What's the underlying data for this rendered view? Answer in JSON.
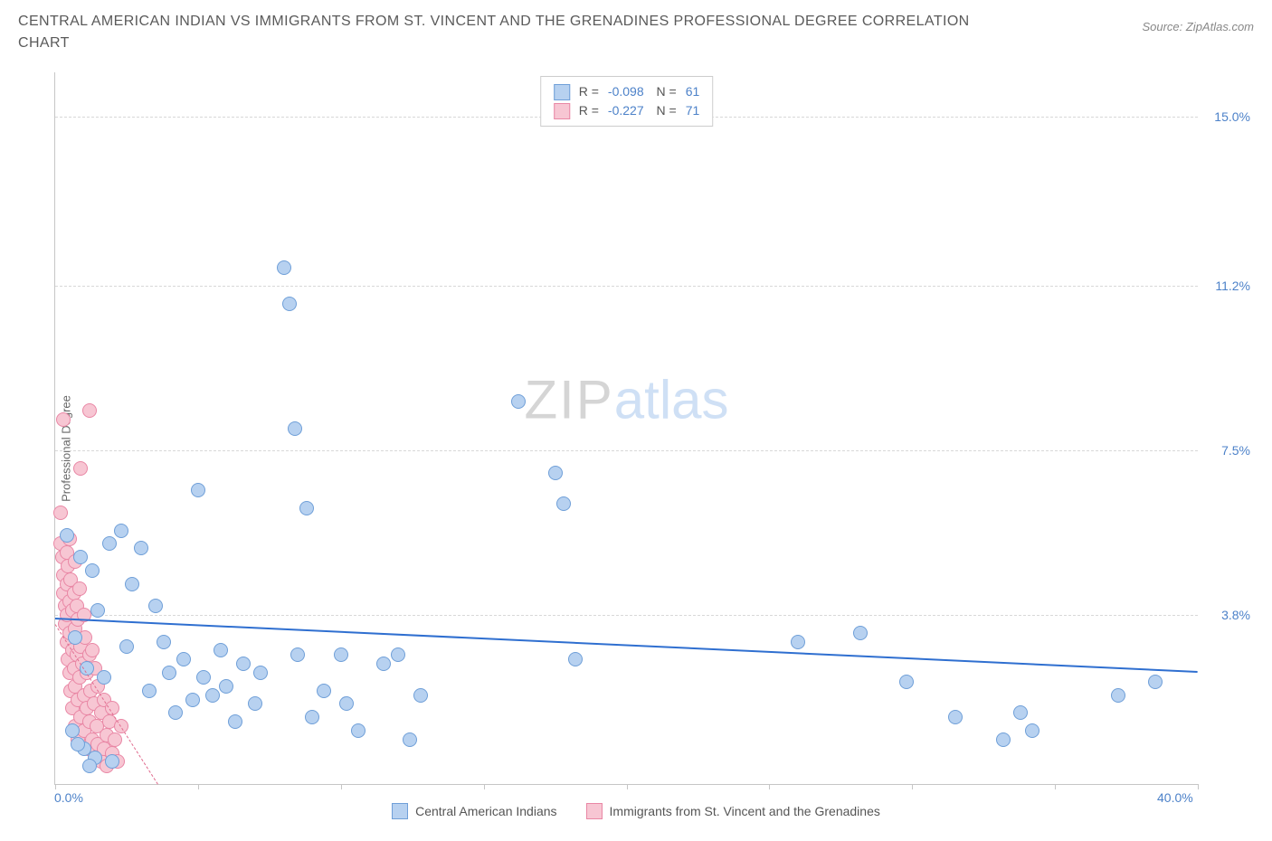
{
  "title": "CENTRAL AMERICAN INDIAN VS IMMIGRANTS FROM ST. VINCENT AND THE GRENADINES PROFESSIONAL DEGREE CORRELATION CHART",
  "source": "Source: ZipAtlas.com",
  "y_axis_label": "Professional Degree",
  "watermark": {
    "a": "ZIP",
    "b": "atlas"
  },
  "chart": {
    "type": "scatter",
    "background_color": "#ffffff",
    "grid_color": "#d8d8d8",
    "axis_color": "#c6c6c6",
    "xlim": [
      0,
      40
    ],
    "ylim": [
      0,
      16
    ],
    "x_ticks": [
      0,
      5,
      10,
      15,
      20,
      25,
      30,
      35,
      40
    ],
    "y_gridlines": [
      3.8,
      7.5,
      11.2,
      15.0
    ],
    "y_tick_labels": [
      "3.8%",
      "7.5%",
      "11.2%",
      "15.0%"
    ],
    "x_min_label": "0.0%",
    "x_max_label": "40.0%",
    "tick_label_color": "#4d82c9",
    "marker_radius": 8,
    "marker_border_width": 1,
    "series": [
      {
        "name": "Central American Indians",
        "fill": "#b7d1f0",
        "stroke": "#6f9fd8",
        "r": "-0.098",
        "n": "61",
        "trend": {
          "x1": 0,
          "y1": 3.75,
          "x2": 40,
          "y2": 2.55,
          "color": "#2f6fd0",
          "width": 2,
          "dash": false
        },
        "points": [
          [
            0.4,
            5.6
          ],
          [
            0.7,
            3.3
          ],
          [
            0.9,
            5.1
          ],
          [
            1.1,
            2.6
          ],
          [
            1.3,
            4.8
          ],
          [
            1.5,
            3.9
          ],
          [
            1.7,
            2.4
          ],
          [
            1.9,
            5.4
          ],
          [
            2.3,
            5.7
          ],
          [
            2.5,
            3.1
          ],
          [
            2.7,
            4.5
          ],
          [
            3.0,
            5.3
          ],
          [
            3.3,
            2.1
          ],
          [
            3.5,
            4.0
          ],
          [
            3.8,
            3.2
          ],
          [
            4.0,
            2.5
          ],
          [
            4.2,
            1.6
          ],
          [
            4.5,
            2.8
          ],
          [
            4.8,
            1.9
          ],
          [
            5.0,
            6.6
          ],
          [
            5.2,
            2.4
          ],
          [
            5.5,
            2.0
          ],
          [
            5.8,
            3.0
          ],
          [
            6.0,
            2.2
          ],
          [
            6.3,
            1.4
          ],
          [
            6.6,
            2.7
          ],
          [
            7.0,
            1.8
          ],
          [
            7.2,
            2.5
          ],
          [
            8.0,
            11.6
          ],
          [
            8.2,
            10.8
          ],
          [
            8.4,
            8.0
          ],
          [
            8.5,
            2.9
          ],
          [
            8.8,
            6.2
          ],
          [
            9.0,
            1.5
          ],
          [
            9.4,
            2.1
          ],
          [
            10.0,
            2.9
          ],
          [
            10.2,
            1.8
          ],
          [
            10.6,
            1.2
          ],
          [
            11.5,
            2.7
          ],
          [
            12.0,
            2.9
          ],
          [
            12.4,
            1.0
          ],
          [
            12.8,
            2.0
          ],
          [
            16.2,
            8.6
          ],
          [
            17.5,
            7.0
          ],
          [
            17.8,
            6.3
          ],
          [
            18.2,
            2.8
          ],
          [
            26.0,
            3.2
          ],
          [
            28.2,
            3.4
          ],
          [
            29.8,
            2.3
          ],
          [
            31.5,
            1.5
          ],
          [
            33.2,
            1.0
          ],
          [
            33.8,
            1.6
          ],
          [
            34.2,
            1.2
          ],
          [
            37.2,
            2.0
          ],
          [
            38.5,
            2.3
          ],
          [
            1.0,
            0.8
          ],
          [
            1.4,
            0.6
          ],
          [
            2.0,
            0.5
          ],
          [
            0.6,
            1.2
          ],
          [
            0.8,
            0.9
          ],
          [
            1.2,
            0.4
          ]
        ]
      },
      {
        "name": "Immigrants from St. Vincent and the Grenadines",
        "fill": "#f7c6d3",
        "stroke": "#e987a5",
        "r": "-0.227",
        "n": "71",
        "trend": {
          "x1": 0,
          "y1": 3.6,
          "x2": 3.6,
          "y2": 0,
          "color": "#e06a8d",
          "width": 1.5,
          "dash": true
        },
        "points": [
          [
            0.2,
            5.4
          ],
          [
            0.25,
            5.1
          ],
          [
            0.3,
            4.7
          ],
          [
            0.3,
            4.3
          ],
          [
            0.35,
            4.0
          ],
          [
            0.35,
            3.6
          ],
          [
            0.4,
            5.2
          ],
          [
            0.4,
            4.5
          ],
          [
            0.4,
            3.8
          ],
          [
            0.4,
            3.2
          ],
          [
            0.45,
            2.8
          ],
          [
            0.45,
            4.9
          ],
          [
            0.5,
            5.5
          ],
          [
            0.5,
            4.1
          ],
          [
            0.5,
            3.4
          ],
          [
            0.5,
            2.5
          ],
          [
            0.55,
            2.1
          ],
          [
            0.55,
            4.6
          ],
          [
            0.6,
            3.9
          ],
          [
            0.6,
            3.0
          ],
          [
            0.6,
            1.7
          ],
          [
            0.65,
            4.3
          ],
          [
            0.65,
            2.6
          ],
          [
            0.7,
            5.0
          ],
          [
            0.7,
            3.5
          ],
          [
            0.7,
            2.2
          ],
          [
            0.7,
            1.3
          ],
          [
            0.75,
            4.0
          ],
          [
            0.75,
            2.9
          ],
          [
            0.8,
            3.7
          ],
          [
            0.8,
            1.9
          ],
          [
            0.8,
            1.0
          ],
          [
            0.85,
            4.4
          ],
          [
            0.85,
            2.4
          ],
          [
            0.9,
            3.1
          ],
          [
            0.9,
            1.5
          ],
          [
            0.95,
            2.7
          ],
          [
            1.0,
            3.8
          ],
          [
            1.0,
            2.0
          ],
          [
            1.0,
            1.2
          ],
          [
            1.05,
            3.3
          ],
          [
            1.1,
            2.5
          ],
          [
            1.1,
            1.7
          ],
          [
            1.15,
            0.8
          ],
          [
            1.2,
            2.9
          ],
          [
            1.2,
            1.4
          ],
          [
            1.25,
            2.1
          ],
          [
            1.3,
            3.0
          ],
          [
            1.3,
            1.0
          ],
          [
            1.35,
            1.8
          ],
          [
            1.4,
            2.6
          ],
          [
            1.4,
            0.6
          ],
          [
            1.45,
            1.3
          ],
          [
            1.5,
            2.2
          ],
          [
            1.5,
            0.9
          ],
          [
            1.6,
            1.6
          ],
          [
            1.6,
            0.5
          ],
          [
            1.7,
            1.9
          ],
          [
            1.7,
            0.8
          ],
          [
            1.8,
            1.1
          ],
          [
            1.8,
            0.4
          ],
          [
            1.9,
            1.4
          ],
          [
            2.0,
            0.7
          ],
          [
            2.0,
            1.7
          ],
          [
            2.1,
            1.0
          ],
          [
            2.2,
            0.5
          ],
          [
            2.3,
            1.3
          ],
          [
            0.2,
            6.1
          ],
          [
            1.2,
            8.4
          ],
          [
            0.9,
            7.1
          ],
          [
            0.3,
            8.2
          ]
        ]
      }
    ]
  },
  "legend_bottom": {
    "a": "Central American Indians",
    "b": "Immigrants from St. Vincent and the Grenadines"
  }
}
